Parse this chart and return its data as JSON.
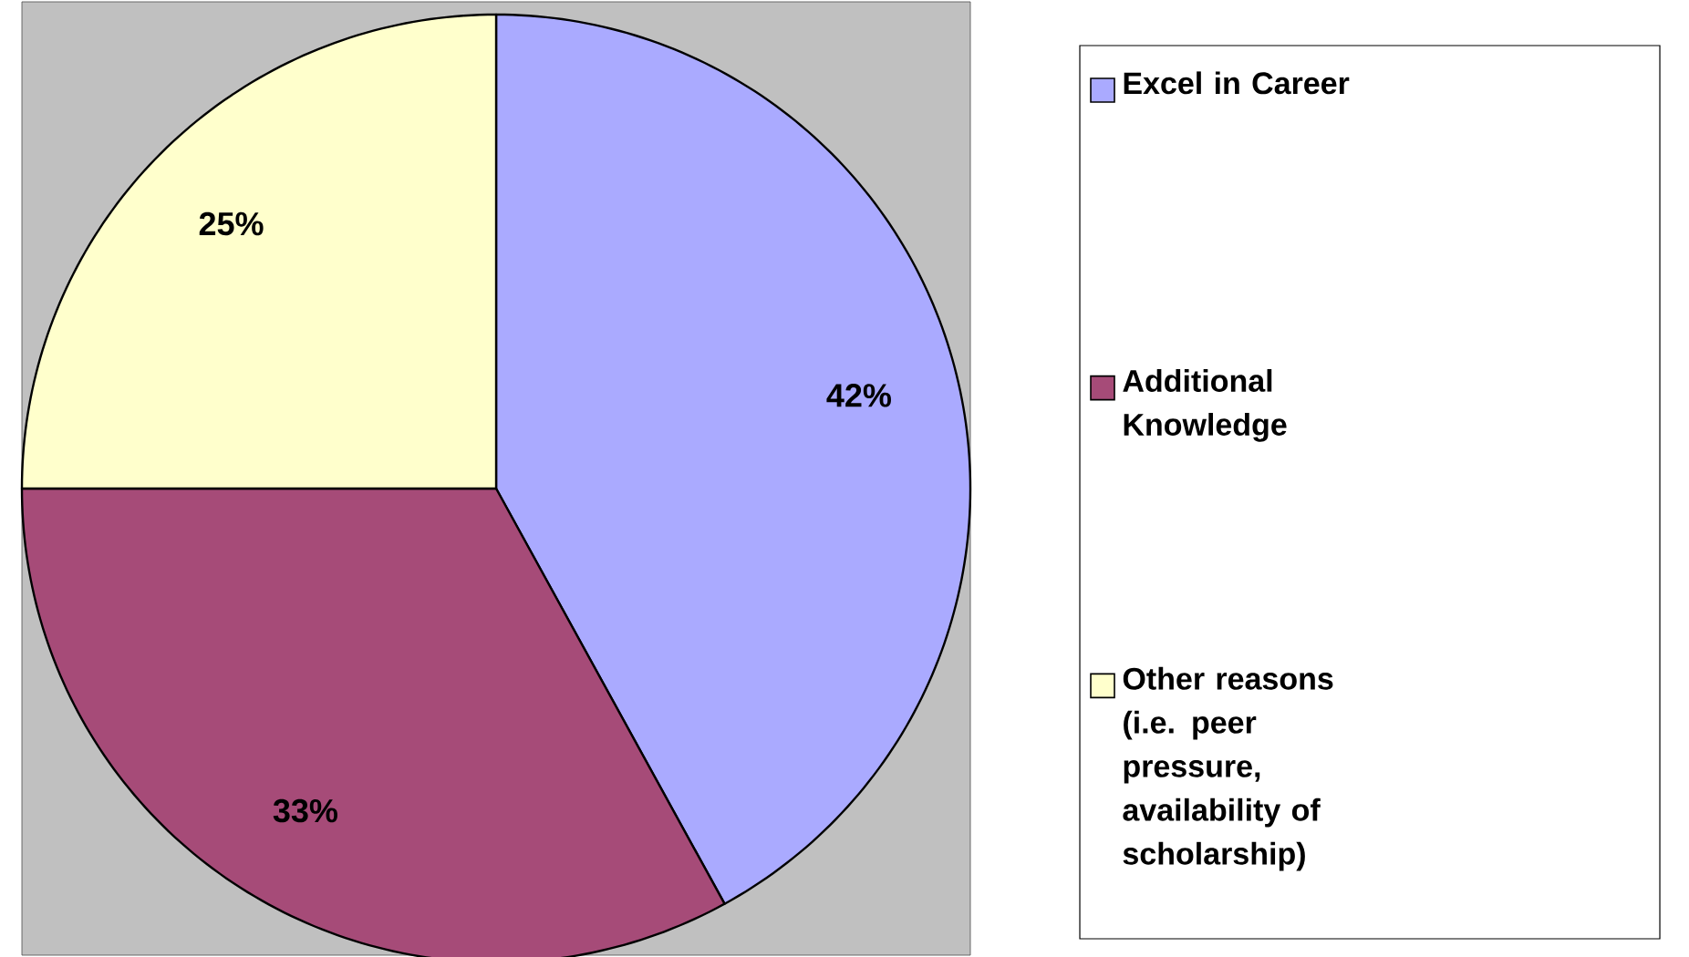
{
  "chart_data": {
    "type": "pie",
    "categories": [
      "Excel in Career",
      "Additional Knowledge",
      "Other reasons (i.e. peer pressure, availability of scholarship)"
    ],
    "values": [
      42,
      33,
      25
    ],
    "colors": [
      "#aaaaff",
      "#a64b78",
      "#ffffcc"
    ],
    "value_labels": [
      "42%",
      "33%",
      "25%"
    ],
    "legend": "right"
  }
}
